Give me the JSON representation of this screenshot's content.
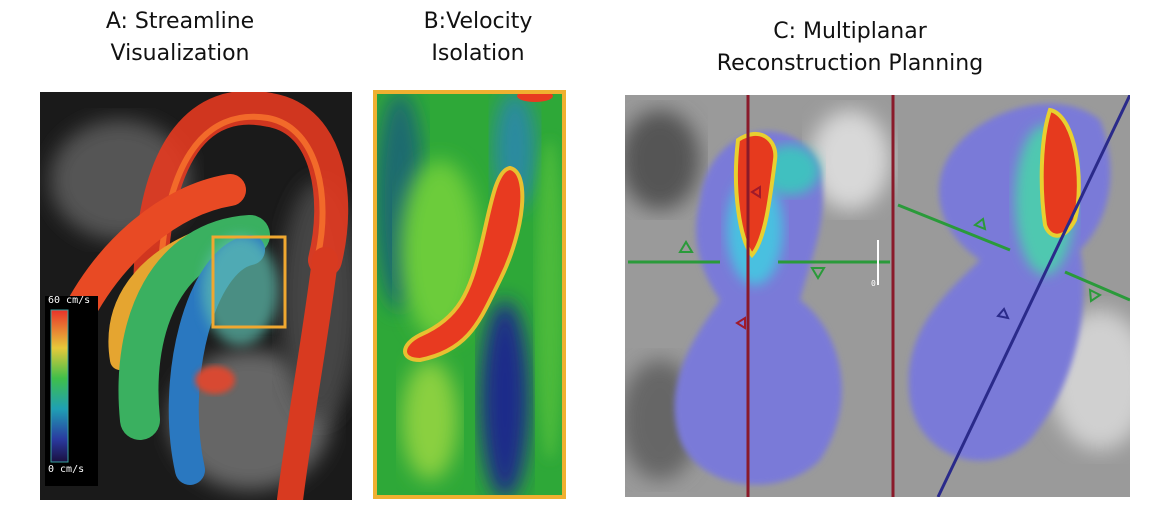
{
  "panels": [
    {
      "title_lines": [
        "A: Streamline",
        "Visualization"
      ],
      "colorbar": {
        "max_label": "60 cm/s",
        "min_label": "0 cm/s"
      }
    },
    {
      "title_lines": [
        "B:Velocity",
        "Isolation"
      ]
    },
    {
      "title_lines": [
        "C: Multiplanar",
        "Reconstruction Planning"
      ],
      "overlay_text": "0"
    }
  ]
}
